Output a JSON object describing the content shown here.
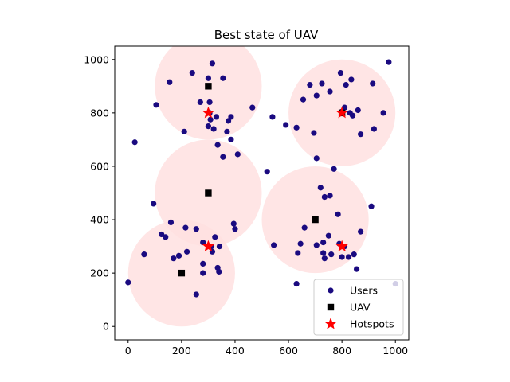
{
  "chart_data": {
    "type": "scatter",
    "title": "Best state of UAV",
    "xlabel": "",
    "ylabel": "",
    "xlim": [
      -50,
      1050
    ],
    "ylim": [
      -50,
      1050
    ],
    "xticks": [
      0,
      200,
      400,
      600,
      800,
      1000
    ],
    "yticks": [
      0,
      200,
      400,
      600,
      800,
      1000
    ],
    "grid": false,
    "legend_position": "lower-right",
    "coverage_radius": 200,
    "colors": {
      "users": "#1a0a80",
      "uav": "#000000",
      "hotspots": "#ff0000",
      "coverage": "#ffe0e0"
    },
    "series": [
      {
        "name": "Users",
        "marker": "circle",
        "points": [
          [
            0,
            165
          ],
          [
            25,
            690
          ],
          [
            60,
            270
          ],
          [
            95,
            460
          ],
          [
            105,
            830
          ],
          [
            125,
            345
          ],
          [
            140,
            335
          ],
          [
            155,
            915
          ],
          [
            160,
            390
          ],
          [
            170,
            255
          ],
          [
            190,
            265
          ],
          [
            210,
            730
          ],
          [
            215,
            370
          ],
          [
            220,
            280
          ],
          [
            240,
            950
          ],
          [
            255,
            120
          ],
          [
            255,
            365
          ],
          [
            270,
            840
          ],
          [
            280,
            315
          ],
          [
            280,
            200
          ],
          [
            280,
            235
          ],
          [
            300,
            930
          ],
          [
            300,
            750
          ],
          [
            305,
            840
          ],
          [
            305,
            800
          ],
          [
            308,
            775
          ],
          [
            312,
            300
          ],
          [
            315,
            280
          ],
          [
            315,
            985
          ],
          [
            320,
            740
          ],
          [
            325,
            335
          ],
          [
            330,
            785
          ],
          [
            335,
            680
          ],
          [
            335,
            220
          ],
          [
            340,
            205
          ],
          [
            342,
            300
          ],
          [
            355,
            930
          ],
          [
            355,
            635
          ],
          [
            370,
            730
          ],
          [
            375,
            770
          ],
          [
            385,
            785
          ],
          [
            385,
            700
          ],
          [
            395,
            385
          ],
          [
            400,
            365
          ],
          [
            410,
            645
          ],
          [
            465,
            820
          ],
          [
            520,
            580
          ],
          [
            540,
            785
          ],
          [
            545,
            305
          ],
          [
            590,
            755
          ],
          [
            630,
            160
          ],
          [
            630,
            745
          ],
          [
            635,
            275
          ],
          [
            645,
            310
          ],
          [
            655,
            850
          ],
          [
            660,
            370
          ],
          [
            680,
            905
          ],
          [
            695,
            725
          ],
          [
            705,
            630
          ],
          [
            705,
            865
          ],
          [
            705,
            305
          ],
          [
            720,
            520
          ],
          [
            725,
            910
          ],
          [
            730,
            275
          ],
          [
            730,
            315
          ],
          [
            735,
            485
          ],
          [
            735,
            255
          ],
          [
            750,
            340
          ],
          [
            755,
            490
          ],
          [
            755,
            880
          ],
          [
            760,
            270
          ],
          [
            770,
            590
          ],
          [
            785,
            420
          ],
          [
            790,
            310
          ],
          [
            795,
            950
          ],
          [
            800,
            260
          ],
          [
            800,
            805
          ],
          [
            810,
            820
          ],
          [
            810,
            300
          ],
          [
            815,
            905
          ],
          [
            825,
            260
          ],
          [
            830,
            800
          ],
          [
            835,
            925
          ],
          [
            840,
            790
          ],
          [
            845,
            270
          ],
          [
            855,
            215
          ],
          [
            860,
            810
          ],
          [
            870,
            720
          ],
          [
            870,
            355
          ],
          [
            910,
            450
          ],
          [
            915,
            910
          ],
          [
            920,
            740
          ],
          [
            955,
            800
          ],
          [
            975,
            990
          ],
          [
            1000,
            160
          ]
        ]
      },
      {
        "name": "UAV",
        "marker": "square",
        "points": [
          [
            300,
            900
          ],
          [
            300,
            500
          ],
          [
            200,
            200
          ],
          [
            700,
            400
          ],
          [
            800,
            800
          ]
        ]
      },
      {
        "name": "Hotspots",
        "marker": "star",
        "points": [
          [
            300,
            800
          ],
          [
            300,
            300
          ],
          [
            800,
            300
          ],
          [
            800,
            800
          ]
        ]
      }
    ]
  }
}
